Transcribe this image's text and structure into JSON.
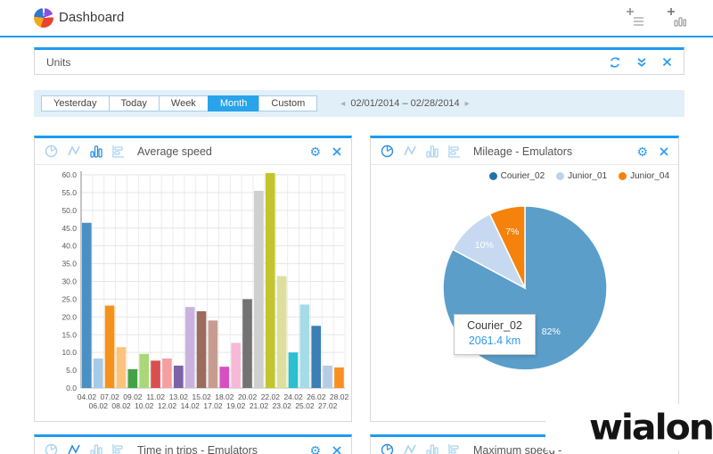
{
  "header": {
    "title": "Dashboard",
    "accent_color": "#1f9bef",
    "icons": [
      {
        "name": "add-table-widget",
        "glyph": "plus-list"
      },
      {
        "name": "add-chart-widget",
        "glyph": "plus-columns"
      }
    ]
  },
  "units_panel": {
    "title": "Units",
    "icons": [
      "refresh-icon",
      "collapse-double-chevron-icon",
      "close-icon"
    ]
  },
  "date_bar": {
    "buttons": [
      {
        "label": "Yesterday",
        "active": false
      },
      {
        "label": "Today",
        "active": false
      },
      {
        "label": "Week",
        "active": false
      },
      {
        "label": "Month",
        "active": true
      },
      {
        "label": "Custom",
        "active": false
      }
    ],
    "prev_icon": "◂",
    "next_icon": "▸",
    "range": "02/01/2014 – 02/28/2014",
    "active_color": "#29a3e9",
    "bar_background": "#e1eff9"
  },
  "panels": [
    {
      "title": "Average speed",
      "active_chart_type": "column"
    },
    {
      "title": "Mileage - Emulators",
      "active_chart_type": "pie"
    },
    {
      "title": "Time in trips - Emulators",
      "active_chart_type": "line"
    },
    {
      "title": "Maximum speed -",
      "active_chart_type": "pie"
    }
  ],
  "chart_data": [
    {
      "type": "bar",
      "title": "Average speed",
      "categories": [
        "04.02",
        "06.02",
        "07.02",
        "08.02",
        "09.02",
        "10.02",
        "11.02",
        "12.02",
        "13.02",
        "14.02",
        "15.02",
        "17.02",
        "18.02",
        "19.02",
        "20.02",
        "21.02",
        "22.02",
        "23.02",
        "24.02",
        "25.02",
        "26.02",
        "27.02",
        "28.02"
      ],
      "values": [
        46.5,
        8.3,
        23.2,
        11.5,
        5.3,
        9.6,
        7.7,
        8.3,
        6.3,
        22.8,
        21.6,
        19.0,
        6.0,
        12.7,
        25.0,
        55.5,
        60.5,
        31.5,
        10.0,
        23.5,
        17.5,
        6.3,
        5.8
      ],
      "colors": [
        "#4a90c4",
        "#a6cbe8",
        "#f5921e",
        "#fbc37c",
        "#44a244",
        "#a8d878",
        "#d94f4f",
        "#f4a0a0",
        "#7d62a8",
        "#c9b3de",
        "#9a6b5e",
        "#c79c90",
        "#d850c0",
        "#f8b8d8",
        "#737373",
        "#cfcfcf",
        "#c3c52d",
        "#dedf9c",
        "#2bbfcf",
        "#a5dce6",
        "#3c7fb5",
        "#b5cde4",
        "#f89020"
      ],
      "ylim": [
        0,
        60
      ],
      "ytick_step": 5,
      "grid": true,
      "xlabel": "",
      "ylabel": ""
    },
    {
      "type": "pie",
      "title": "Mileage - Emulators",
      "slices": [
        {
          "name": "Courier_02",
          "percent_label": "82%",
          "value": 82,
          "color": "#5b9ec9"
        },
        {
          "name": "Junior_01",
          "percent_label": "10%",
          "value": 10,
          "color": "#c6d9f0"
        },
        {
          "name": "Junior_04",
          "percent_label": "7%",
          "value": 7,
          "color": "#f5820b"
        }
      ],
      "legend": [
        {
          "name": "Courier_02",
          "color": "#2273a8"
        },
        {
          "name": "Junior_01",
          "color": "#bdd2ec"
        },
        {
          "name": "Junior_04",
          "color": "#f5820b"
        }
      ],
      "legend_position": "top-right",
      "tooltip": {
        "name": "Courier_02",
        "value": "2061.4 km"
      }
    }
  ],
  "watermark": "wialon"
}
